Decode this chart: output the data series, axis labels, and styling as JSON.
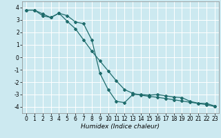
{
  "title": "",
  "xlabel": "Humidex (Indice chaleur)",
  "bg_color": "#cce9f0",
  "grid_color": "#ffffff",
  "line_color": "#1e6b6b",
  "x_line1": [
    0,
    1,
    2,
    3,
    4,
    5,
    6,
    7,
    8,
    9,
    10,
    11,
    12,
    13,
    14,
    15,
    16,
    17,
    18,
    19,
    20,
    21,
    22,
    23
  ],
  "y_line1": [
    3.8,
    3.8,
    3.5,
    3.2,
    3.55,
    3.35,
    2.85,
    2.7,
    1.4,
    -1.3,
    -2.6,
    -3.55,
    -3.65,
    -3.0,
    -3.0,
    -3.05,
    -3.0,
    -3.1,
    -3.2,
    -3.25,
    -3.55,
    -3.7,
    -3.72,
    -3.92
  ],
  "x_line2": [
    0,
    1,
    2,
    3,
    4,
    5,
    6,
    7,
    8,
    9,
    10,
    11,
    12,
    13,
    14,
    15,
    16,
    17,
    18,
    19,
    20,
    21,
    22,
    23
  ],
  "y_line2": [
    3.8,
    3.8,
    3.35,
    3.2,
    3.55,
    2.9,
    2.3,
    1.4,
    0.5,
    -0.3,
    -1.1,
    -1.9,
    -2.6,
    -2.9,
    -3.05,
    -3.15,
    -3.22,
    -3.32,
    -3.42,
    -3.52,
    -3.62,
    -3.72,
    -3.82,
    -3.97
  ],
  "ylim": [
    -4.5,
    4.5
  ],
  "xlim": [
    -0.5,
    23.5
  ],
  "yticks": [
    -4,
    -3,
    -2,
    -1,
    0,
    1,
    2,
    3,
    4
  ],
  "xticks": [
    0,
    1,
    2,
    3,
    4,
    5,
    6,
    7,
    8,
    9,
    10,
    11,
    12,
    13,
    14,
    15,
    16,
    17,
    18,
    19,
    20,
    21,
    22,
    23
  ],
  "marker_size": 2.0,
  "linewidth": 0.9,
  "tick_fontsize": 5.5,
  "xlabel_fontsize": 6.5
}
